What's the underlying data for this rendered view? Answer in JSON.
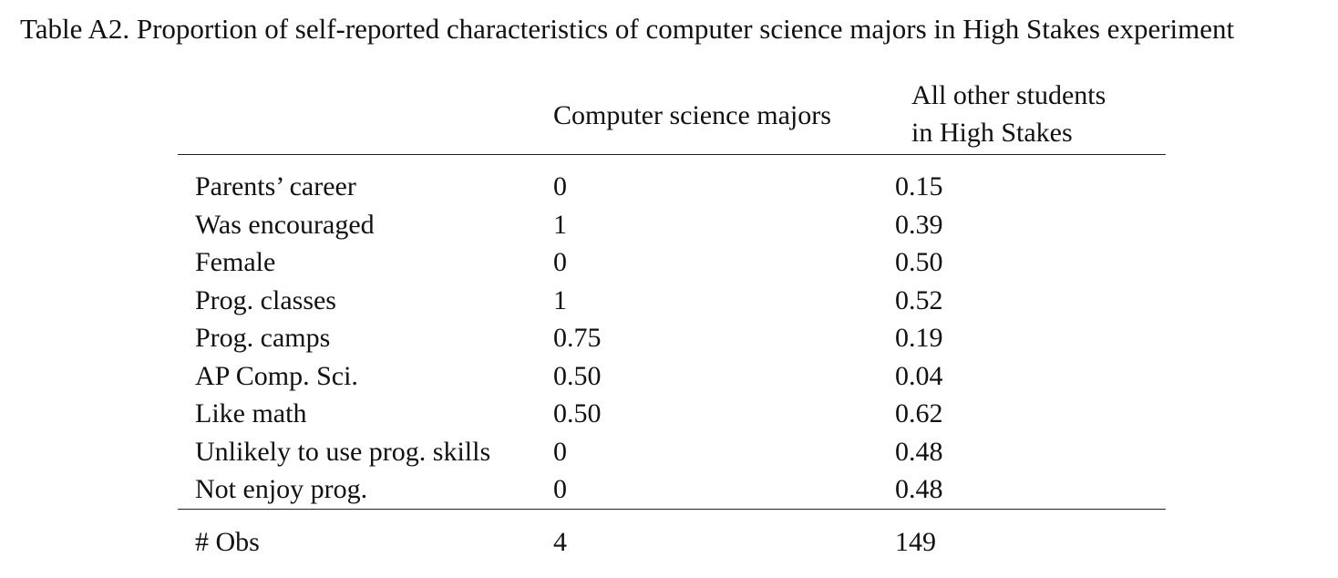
{
  "caption": "Table A2. Proportion of self-reported characteristics of computer science majors in High Stakes experiment",
  "headers": {
    "col1": "Computer science majors",
    "col2_line1": "All other students",
    "col2_line2": "in High Stakes"
  },
  "rows": [
    {
      "label": "Parents’ career",
      "cs": "0",
      "other": "0.15"
    },
    {
      "label": "Was encouraged",
      "cs": "1",
      "other": "0.39"
    },
    {
      "label": "Female",
      "cs": "0",
      "other": "0.50"
    },
    {
      "label": "Prog. classes",
      "cs": "1",
      "other": "0.52"
    },
    {
      "label": "Prog. camps",
      "cs": "0.75",
      "other": "0.19"
    },
    {
      "label": "AP Comp. Sci.",
      "cs": "0.50",
      "other": "0.04"
    },
    {
      "label": "Like math",
      "cs": "0.50",
      "other": "0.62"
    },
    {
      "label": "Unlikely to use prog. skills",
      "cs": "0",
      "other": "0.48"
    },
    {
      "label": "Not enjoy prog.",
      "cs": "0",
      "other": "0.48"
    }
  ],
  "obs": {
    "label": "# Obs",
    "cs": "4",
    "other": "149"
  }
}
